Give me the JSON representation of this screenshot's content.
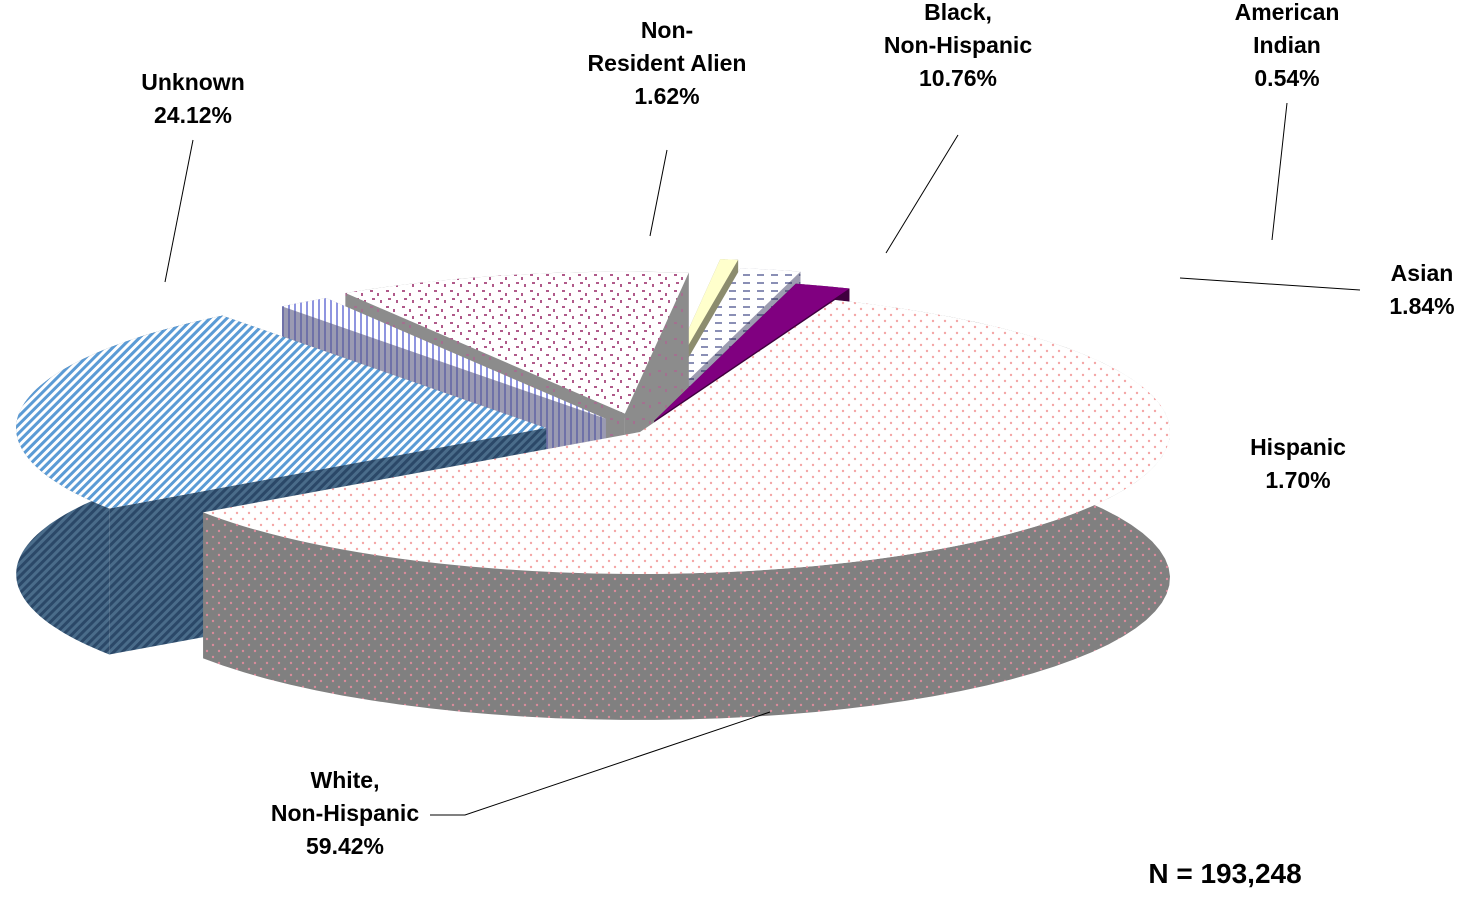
{
  "chart_data": {
    "type": "pie",
    "three_d": true,
    "exploded": true,
    "title": "",
    "legend": "none",
    "note": "N = 193,248",
    "slices": [
      {
        "label_lines": [
          "White,",
          "Non-Hispanic"
        ],
        "value_label": "59.42%",
        "value": 59.42,
        "color": "#f4a6a6",
        "pattern": "dots"
      },
      {
        "label_lines": [
          "Unknown"
        ],
        "value_label": "24.12%",
        "value": 24.12,
        "color": "#5b9bd5",
        "pattern": "diagonal-stripes"
      },
      {
        "label_lines": [
          "Non-",
          "Resident Alien"
        ],
        "value_label": "1.62%",
        "value": 1.62,
        "color": "#8f95e0",
        "pattern": "vertical-stripes"
      },
      {
        "label_lines": [
          "Black,",
          "Non-Hispanic"
        ],
        "value_label": "10.76%",
        "value": 10.76,
        "color": "#b05a8a",
        "pattern": "confetti"
      },
      {
        "label_lines": [
          "American",
          "Indian"
        ],
        "value_label": "0.54%",
        "value": 0.54,
        "color": "#ffffcc",
        "pattern": "solid"
      },
      {
        "label_lines": [
          "Asian"
        ],
        "value_label": "1.84%",
        "value": 1.84,
        "color": "#8a8fb5",
        "pattern": "dashes"
      },
      {
        "label_lines": [
          "Hispanic"
        ],
        "value_label": "1.70%",
        "value": 1.7,
        "color": "#800080",
        "pattern": "solid"
      }
    ]
  }
}
